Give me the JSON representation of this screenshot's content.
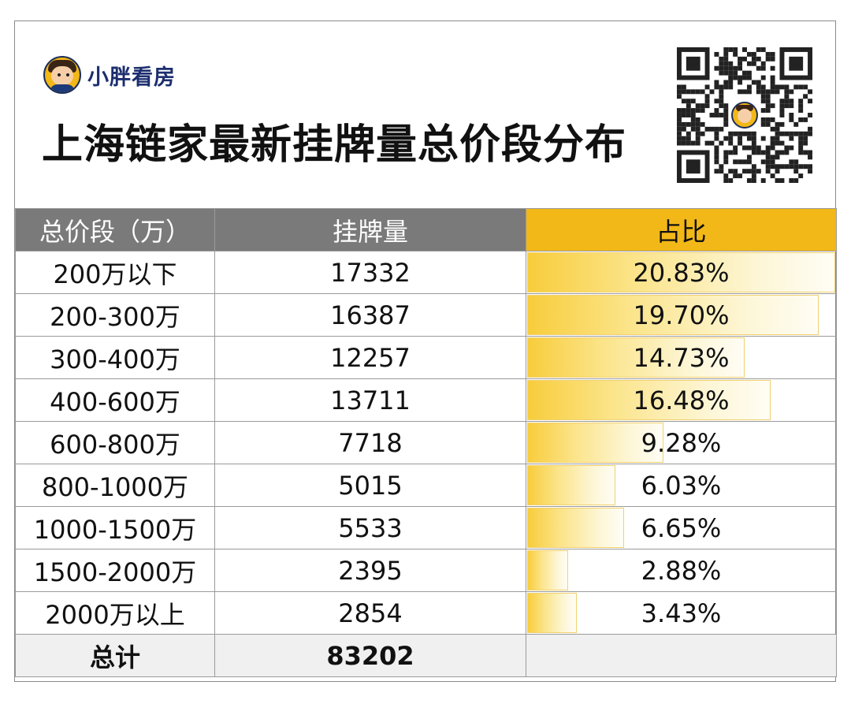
{
  "brand": {
    "name": "小胖看房",
    "logo_icon": "cartoon-avatar-icon"
  },
  "title": "上海链家最新挂牌量总价段分布",
  "qr_icon": "qr-code-icon",
  "colors": {
    "header_gray": "#7a7a7a",
    "header_gold": "#f2b817",
    "bar": "#f8cd3c",
    "brand_text": "#1c2e6e"
  },
  "chart_data": {
    "type": "table",
    "headers": [
      "总价段（万）",
      "挂牌量",
      "占比"
    ],
    "rows": [
      {
        "range": "200万以下",
        "count": 17332,
        "pct_label": "20.83%",
        "pct": 20.83
      },
      {
        "range": "200-300万",
        "count": 16387,
        "pct_label": "19.70%",
        "pct": 19.7
      },
      {
        "range": "300-400万",
        "count": 12257,
        "pct_label": "14.73%",
        "pct": 14.73
      },
      {
        "range": "400-600万",
        "count": 13711,
        "pct_label": "16.48%",
        "pct": 16.48
      },
      {
        "range": "600-800万",
        "count": 7718,
        "pct_label": "9.28%",
        "pct": 9.28
      },
      {
        "range": "800-1000万",
        "count": 5015,
        "pct_label": "6.03%",
        "pct": 6.03
      },
      {
        "range": "1000-1500万",
        "count": 5533,
        "pct_label": "6.65%",
        "pct": 6.65
      },
      {
        "range": "1500-2000万",
        "count": 2395,
        "pct_label": "2.88%",
        "pct": 2.88
      },
      {
        "range": "2000万以上",
        "count": 2854,
        "pct_label": "3.43%",
        "pct": 3.43
      }
    ],
    "total": {
      "label": "总计",
      "count": 83202
    }
  }
}
